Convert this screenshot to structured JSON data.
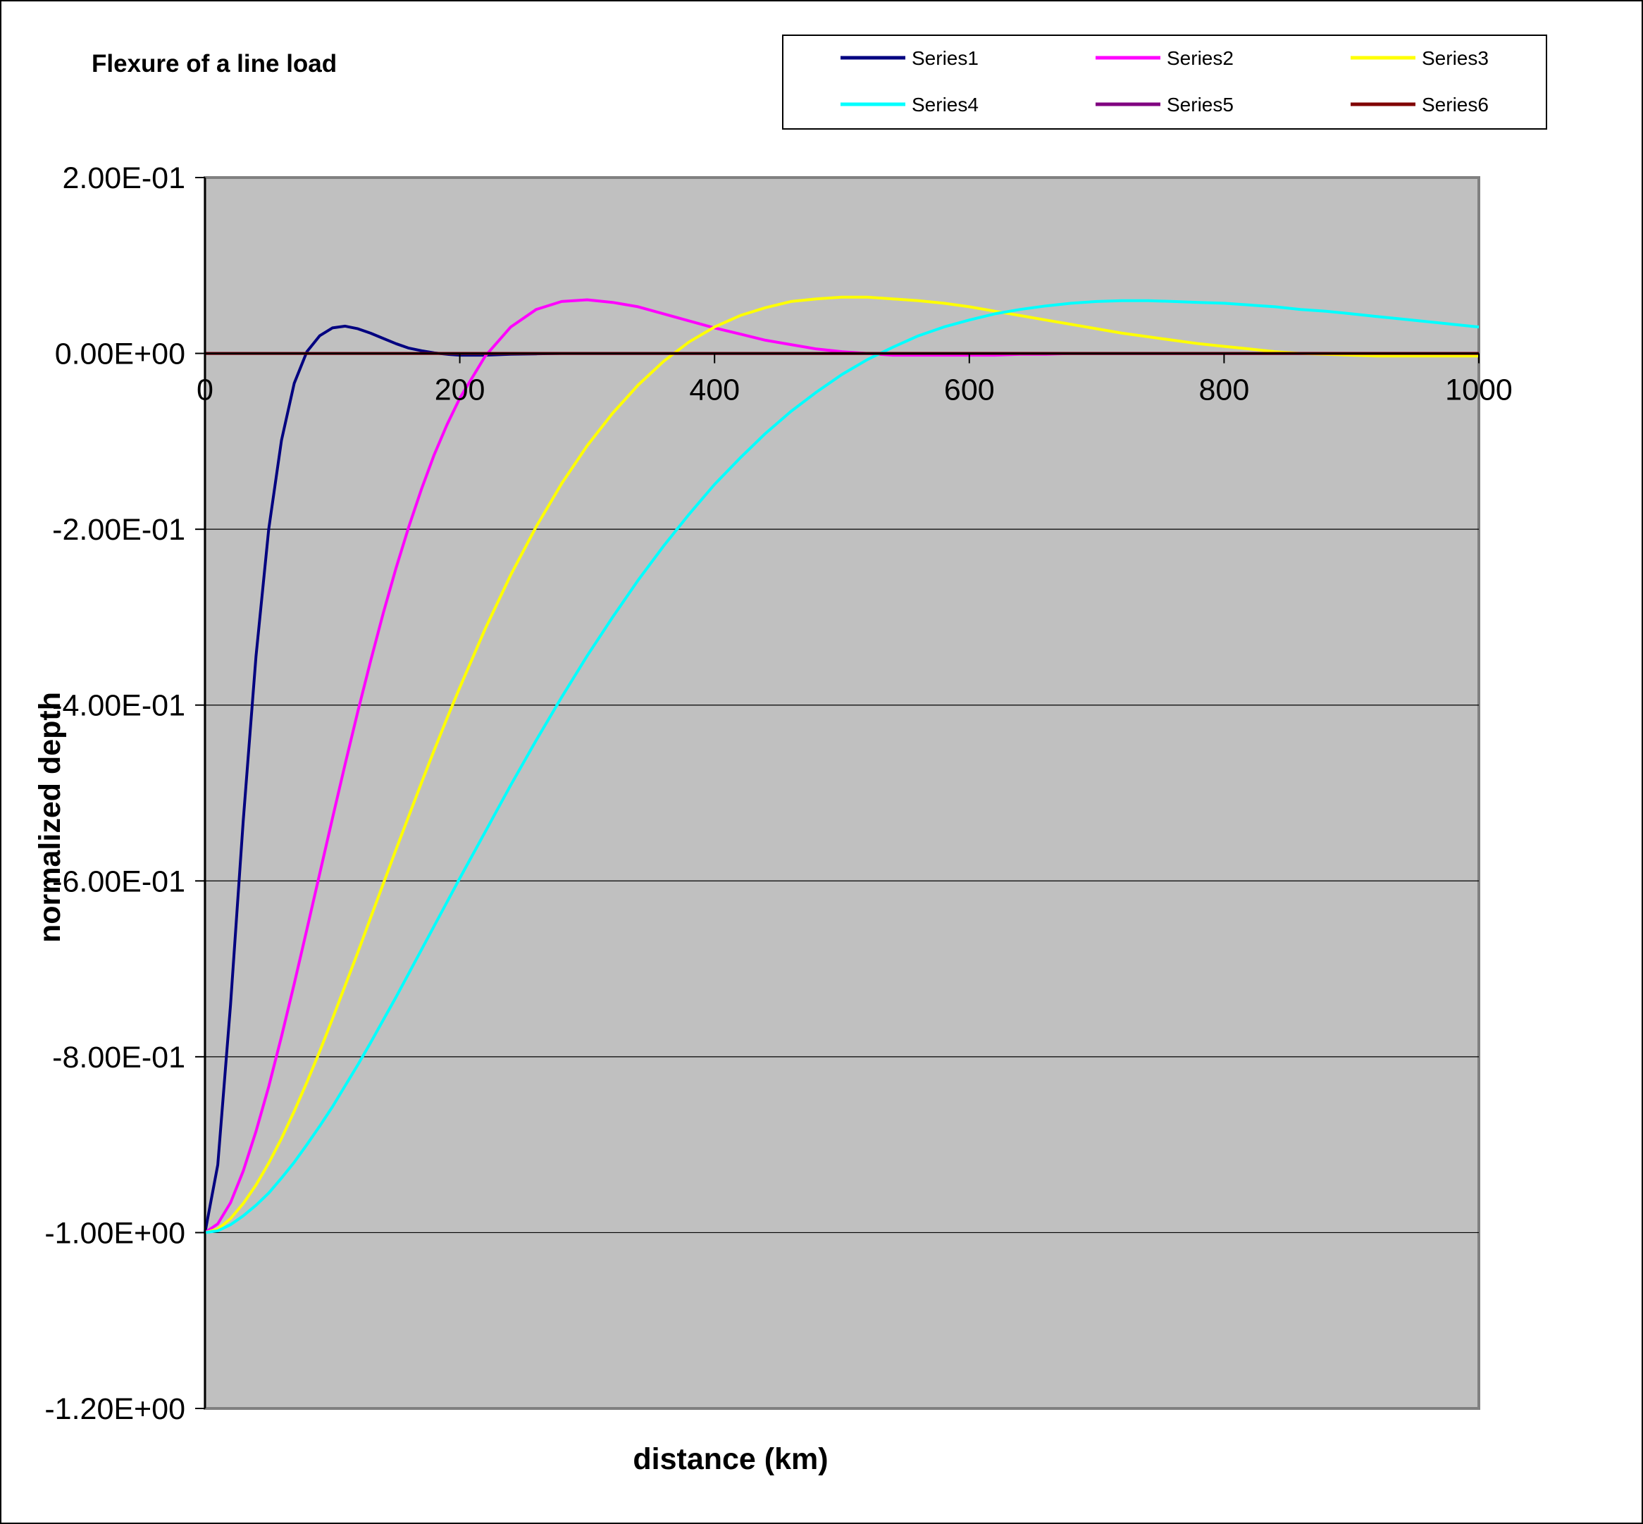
{
  "chart_data": {
    "type": "line",
    "title": "Flexure of a line load",
    "xlabel": "distance (km)",
    "ylabel": "normalized depth",
    "xlim": [
      0,
      1000
    ],
    "ylim": [
      -1.2,
      0.2
    ],
    "x_ticks": [
      "0",
      "200",
      "400",
      "600",
      "800",
      "1000"
    ],
    "x_tick_values": [
      0,
      200,
      400,
      600,
      800,
      1000
    ],
    "y_ticks": [
      "2.00E-01",
      "0.00E+00",
      "-2.00E-01",
      "-4.00E-01",
      "-6.00E-01",
      "-8.00E-01",
      "-1.00E+00",
      "-1.20E+00"
    ],
    "y_tick_values": [
      0.2,
      0,
      -0.2,
      -0.4,
      -0.6,
      -0.8,
      -1.0,
      -1.2
    ],
    "grid": true,
    "legend_position": "top-right",
    "plot_background": "#c0c0c0",
    "x": [
      0,
      10,
      20,
      30,
      40,
      50,
      60,
      70,
      80,
      90,
      100,
      110,
      120,
      130,
      140,
      150,
      160,
      170,
      180,
      190,
      200,
      220,
      240,
      260,
      280,
      300,
      320,
      340,
      360,
      380,
      400,
      420,
      440,
      460,
      480,
      500,
      520,
      540,
      560,
      580,
      600,
      620,
      640,
      660,
      680,
      700,
      720,
      740,
      760,
      780,
      800,
      820,
      840,
      860,
      880,
      900,
      920,
      940,
      960,
      980,
      1000
    ],
    "series": [
      {
        "name": "Series1",
        "color": "#000080",
        "values": [
          -1.0,
          -0.923,
          -0.741,
          -0.532,
          -0.345,
          -0.2,
          -0.099,
          -0.034,
          0.002,
          0.02,
          0.029,
          0.031,
          0.028,
          0.023,
          0.017,
          0.011,
          0.006,
          0.003,
          0.0005,
          -0.001,
          -0.002,
          -0.002,
          -0.001,
          -0.0005,
          0,
          0,
          0,
          0,
          0,
          0,
          0,
          0,
          0,
          0,
          0,
          0,
          0,
          0,
          0,
          0,
          0,
          0,
          0,
          0,
          0,
          0,
          0,
          0,
          0,
          0,
          0,
          0,
          0,
          0,
          0,
          0,
          0,
          0,
          0,
          0,
          0
        ]
      },
      {
        "name": "Series2",
        "color": "#ff00ff",
        "values": [
          -1.0,
          -0.99,
          -0.966,
          -0.93,
          -0.885,
          -0.834,
          -0.777,
          -0.717,
          -0.655,
          -0.592,
          -0.529,
          -0.467,
          -0.407,
          -0.35,
          -0.295,
          -0.244,
          -0.197,
          -0.154,
          -0.115,
          -0.081,
          -0.051,
          -0.003,
          0.03,
          0.05,
          0.059,
          0.061,
          0.058,
          0.053,
          0.045,
          0.037,
          0.029,
          0.022,
          0.015,
          0.01,
          0.005,
          0.002,
          0,
          -0.002,
          -0.002,
          -0.002,
          -0.002,
          -0.002,
          -0.001,
          -0.001,
          0,
          0,
          0,
          0,
          0,
          0,
          0,
          0,
          0,
          0,
          0,
          0,
          0,
          0,
          0,
          0,
          0
        ]
      },
      {
        "name": "Series3",
        "color": "#ffff00",
        "values": [
          -1.0,
          -0.996,
          -0.984,
          -0.967,
          -0.946,
          -0.921,
          -0.893,
          -0.862,
          -0.829,
          -0.794,
          -0.757,
          -0.719,
          -0.681,
          -0.642,
          -0.603,
          -0.564,
          -0.526,
          -0.488,
          -0.451,
          -0.415,
          -0.38,
          -0.313,
          -0.252,
          -0.197,
          -0.148,
          -0.105,
          -0.068,
          -0.036,
          -0.009,
          0.013,
          0.03,
          0.043,
          0.052,
          0.059,
          0.062,
          0.064,
          0.064,
          0.062,
          0.06,
          0.057,
          0.053,
          0.048,
          0.043,
          0.038,
          0.033,
          0.028,
          0.023,
          0.019,
          0.015,
          0.011,
          0.008,
          0.005,
          0.002,
          0,
          -0.001,
          -0.002,
          -0.003,
          -0.003,
          -0.003,
          -0.003,
          -0.003
        ]
      },
      {
        "name": "Series4",
        "color": "#00ffff",
        "values": [
          -1.0,
          -0.998,
          -0.991,
          -0.981,
          -0.969,
          -0.955,
          -0.938,
          -0.92,
          -0.9,
          -0.879,
          -0.857,
          -0.833,
          -0.809,
          -0.784,
          -0.758,
          -0.732,
          -0.705,
          -0.678,
          -0.651,
          -0.624,
          -0.597,
          -0.544,
          -0.491,
          -0.44,
          -0.391,
          -0.344,
          -0.3,
          -0.258,
          -0.219,
          -0.183,
          -0.149,
          -0.119,
          -0.091,
          -0.066,
          -0.044,
          -0.024,
          -0.007,
          0.007,
          0.02,
          0.03,
          0.038,
          0.045,
          0.05,
          0.054,
          0.057,
          0.059,
          0.06,
          0.06,
          0.059,
          0.058,
          0.057,
          0.055,
          0.053,
          0.05,
          0.048,
          0.045,
          0.042,
          0.039,
          0.036,
          0.033,
          0.03
        ]
      },
      {
        "name": "Series5",
        "color": "#800080",
        "values": [
          0,
          0,
          0,
          0,
          0,
          0,
          0,
          0,
          0,
          0,
          0,
          0,
          0,
          0,
          0,
          0,
          0,
          0,
          0,
          0,
          0,
          0,
          0,
          0,
          0,
          0,
          0,
          0,
          0,
          0,
          0,
          0,
          0,
          0,
          0,
          0,
          0,
          0,
          0,
          0,
          0,
          0,
          0,
          0,
          0,
          0,
          0,
          0,
          0,
          0,
          0,
          0,
          0,
          0,
          0,
          0,
          0,
          0,
          0,
          0,
          0
        ]
      },
      {
        "name": "Series6",
        "color": "#800000",
        "values": [
          0,
          0,
          0,
          0,
          0,
          0,
          0,
          0,
          0,
          0,
          0,
          0,
          0,
          0,
          0,
          0,
          0,
          0,
          0,
          0,
          0,
          0,
          0,
          0,
          0,
          0,
          0,
          0,
          0,
          0,
          0,
          0,
          0,
          0,
          0,
          0,
          0,
          0,
          0,
          0,
          0,
          0,
          0,
          0,
          0,
          0,
          0,
          0,
          0,
          0,
          0,
          0,
          0,
          0,
          0,
          0,
          0,
          0,
          0,
          0,
          0
        ]
      }
    ]
  }
}
